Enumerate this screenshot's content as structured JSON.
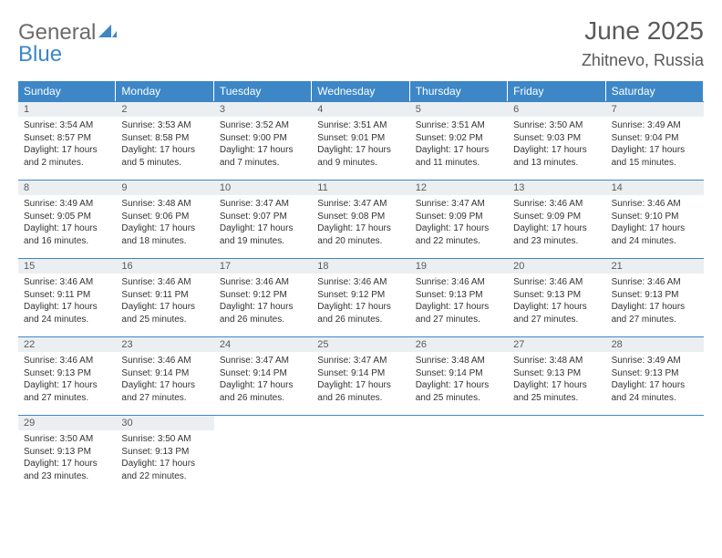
{
  "brand": {
    "part1": "General",
    "part2": "Blue"
  },
  "header": {
    "title": "June 2025",
    "location": "Zhitnevo, Russia"
  },
  "colors": {
    "header_bg": "#3d87c7",
    "header_text": "#ffffff",
    "numbar_bg": "#eceff2",
    "text": "#333333",
    "muted": "#5a5a5a",
    "rule": "#3d87c7",
    "page_bg": "#ffffff"
  },
  "weekdays": [
    "Sunday",
    "Monday",
    "Tuesday",
    "Wednesday",
    "Thursday",
    "Friday",
    "Saturday"
  ],
  "days": [
    {
      "n": "1",
      "sunrise": "Sunrise: 3:54 AM",
      "sunset": "Sunset: 8:57 PM",
      "day1": "Daylight: 17 hours",
      "day2": "and 2 minutes."
    },
    {
      "n": "2",
      "sunrise": "Sunrise: 3:53 AM",
      "sunset": "Sunset: 8:58 PM",
      "day1": "Daylight: 17 hours",
      "day2": "and 5 minutes."
    },
    {
      "n": "3",
      "sunrise": "Sunrise: 3:52 AM",
      "sunset": "Sunset: 9:00 PM",
      "day1": "Daylight: 17 hours",
      "day2": "and 7 minutes."
    },
    {
      "n": "4",
      "sunrise": "Sunrise: 3:51 AM",
      "sunset": "Sunset: 9:01 PM",
      "day1": "Daylight: 17 hours",
      "day2": "and 9 minutes."
    },
    {
      "n": "5",
      "sunrise": "Sunrise: 3:51 AM",
      "sunset": "Sunset: 9:02 PM",
      "day1": "Daylight: 17 hours",
      "day2": "and 11 minutes."
    },
    {
      "n": "6",
      "sunrise": "Sunrise: 3:50 AM",
      "sunset": "Sunset: 9:03 PM",
      "day1": "Daylight: 17 hours",
      "day2": "and 13 minutes."
    },
    {
      "n": "7",
      "sunrise": "Sunrise: 3:49 AM",
      "sunset": "Sunset: 9:04 PM",
      "day1": "Daylight: 17 hours",
      "day2": "and 15 minutes."
    },
    {
      "n": "8",
      "sunrise": "Sunrise: 3:49 AM",
      "sunset": "Sunset: 9:05 PM",
      "day1": "Daylight: 17 hours",
      "day2": "and 16 minutes."
    },
    {
      "n": "9",
      "sunrise": "Sunrise: 3:48 AM",
      "sunset": "Sunset: 9:06 PM",
      "day1": "Daylight: 17 hours",
      "day2": "and 18 minutes."
    },
    {
      "n": "10",
      "sunrise": "Sunrise: 3:47 AM",
      "sunset": "Sunset: 9:07 PM",
      "day1": "Daylight: 17 hours",
      "day2": "and 19 minutes."
    },
    {
      "n": "11",
      "sunrise": "Sunrise: 3:47 AM",
      "sunset": "Sunset: 9:08 PM",
      "day1": "Daylight: 17 hours",
      "day2": "and 20 minutes."
    },
    {
      "n": "12",
      "sunrise": "Sunrise: 3:47 AM",
      "sunset": "Sunset: 9:09 PM",
      "day1": "Daylight: 17 hours",
      "day2": "and 22 minutes."
    },
    {
      "n": "13",
      "sunrise": "Sunrise: 3:46 AM",
      "sunset": "Sunset: 9:09 PM",
      "day1": "Daylight: 17 hours",
      "day2": "and 23 minutes."
    },
    {
      "n": "14",
      "sunrise": "Sunrise: 3:46 AM",
      "sunset": "Sunset: 9:10 PM",
      "day1": "Daylight: 17 hours",
      "day2": "and 24 minutes."
    },
    {
      "n": "15",
      "sunrise": "Sunrise: 3:46 AM",
      "sunset": "Sunset: 9:11 PM",
      "day1": "Daylight: 17 hours",
      "day2": "and 24 minutes."
    },
    {
      "n": "16",
      "sunrise": "Sunrise: 3:46 AM",
      "sunset": "Sunset: 9:11 PM",
      "day1": "Daylight: 17 hours",
      "day2": "and 25 minutes."
    },
    {
      "n": "17",
      "sunrise": "Sunrise: 3:46 AM",
      "sunset": "Sunset: 9:12 PM",
      "day1": "Daylight: 17 hours",
      "day2": "and 26 minutes."
    },
    {
      "n": "18",
      "sunrise": "Sunrise: 3:46 AM",
      "sunset": "Sunset: 9:12 PM",
      "day1": "Daylight: 17 hours",
      "day2": "and 26 minutes."
    },
    {
      "n": "19",
      "sunrise": "Sunrise: 3:46 AM",
      "sunset": "Sunset: 9:13 PM",
      "day1": "Daylight: 17 hours",
      "day2": "and 27 minutes."
    },
    {
      "n": "20",
      "sunrise": "Sunrise: 3:46 AM",
      "sunset": "Sunset: 9:13 PM",
      "day1": "Daylight: 17 hours",
      "day2": "and 27 minutes."
    },
    {
      "n": "21",
      "sunrise": "Sunrise: 3:46 AM",
      "sunset": "Sunset: 9:13 PM",
      "day1": "Daylight: 17 hours",
      "day2": "and 27 minutes."
    },
    {
      "n": "22",
      "sunrise": "Sunrise: 3:46 AM",
      "sunset": "Sunset: 9:13 PM",
      "day1": "Daylight: 17 hours",
      "day2": "and 27 minutes."
    },
    {
      "n": "23",
      "sunrise": "Sunrise: 3:46 AM",
      "sunset": "Sunset: 9:14 PM",
      "day1": "Daylight: 17 hours",
      "day2": "and 27 minutes."
    },
    {
      "n": "24",
      "sunrise": "Sunrise: 3:47 AM",
      "sunset": "Sunset: 9:14 PM",
      "day1": "Daylight: 17 hours",
      "day2": "and 26 minutes."
    },
    {
      "n": "25",
      "sunrise": "Sunrise: 3:47 AM",
      "sunset": "Sunset: 9:14 PM",
      "day1": "Daylight: 17 hours",
      "day2": "and 26 minutes."
    },
    {
      "n": "26",
      "sunrise": "Sunrise: 3:48 AM",
      "sunset": "Sunset: 9:14 PM",
      "day1": "Daylight: 17 hours",
      "day2": "and 25 minutes."
    },
    {
      "n": "27",
      "sunrise": "Sunrise: 3:48 AM",
      "sunset": "Sunset: 9:13 PM",
      "day1": "Daylight: 17 hours",
      "day2": "and 25 minutes."
    },
    {
      "n": "28",
      "sunrise": "Sunrise: 3:49 AM",
      "sunset": "Sunset: 9:13 PM",
      "day1": "Daylight: 17 hours",
      "day2": "and 24 minutes."
    },
    {
      "n": "29",
      "sunrise": "Sunrise: 3:50 AM",
      "sunset": "Sunset: 9:13 PM",
      "day1": "Daylight: 17 hours",
      "day2": "and 23 minutes."
    },
    {
      "n": "30",
      "sunrise": "Sunrise: 3:50 AM",
      "sunset": "Sunset: 9:13 PM",
      "day1": "Daylight: 17 hours",
      "day2": "and 22 minutes."
    }
  ],
  "layout": {
    "start_offset": 0,
    "total_cells": 35
  }
}
